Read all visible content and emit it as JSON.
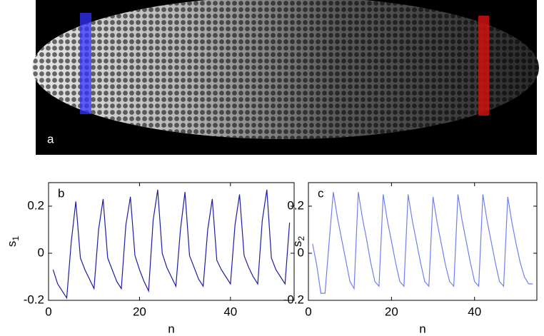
{
  "panel_a": {
    "label": "a"
  },
  "chart_data": [
    {
      "type": "line",
      "label": "b",
      "ylabel": "s",
      "ylabel_sub": "1",
      "xlabel": "n",
      "xlim": [
        0,
        54
      ],
      "xticks": [
        0,
        20,
        40
      ],
      "ylim": [
        -0.2,
        0.3
      ],
      "yticks": [
        -0.2,
        0,
        0.2
      ],
      "x": [
        1,
        2,
        3,
        4,
        5,
        6,
        7,
        8,
        9,
        10,
        11,
        12,
        13,
        14,
        15,
        16,
        17,
        18,
        19,
        20,
        21,
        22,
        23,
        24,
        25,
        26,
        27,
        28,
        29,
        30,
        31,
        32,
        33,
        34,
        35,
        36,
        37,
        38,
        39,
        40,
        41,
        42,
        43,
        44,
        45,
        46,
        47,
        48,
        49,
        50,
        51,
        52,
        53
      ],
      "series": [
        {
          "color": "#1c1ca6",
          "values": [
            -0.07,
            -0.13,
            -0.16,
            -0.19,
            0.05,
            0.22,
            -0.02,
            -0.07,
            -0.11,
            -0.15,
            0.1,
            0.23,
            -0.02,
            -0.07,
            -0.12,
            -0.15,
            0.12,
            0.24,
            -0.01,
            -0.07,
            -0.12,
            -0.16,
            0.14,
            0.27,
            0.0,
            -0.06,
            -0.1,
            -0.14,
            0.1,
            0.26,
            -0.01,
            -0.06,
            -0.11,
            -0.14,
            0.1,
            0.23,
            -0.03,
            -0.07,
            -0.1,
            -0.13,
            0.12,
            0.25,
            -0.01,
            -0.06,
            -0.1,
            -0.13,
            0.14,
            0.27,
            -0.02,
            -0.07,
            -0.1,
            -0.13,
            0.13
          ]
        }
      ]
    },
    {
      "type": "line",
      "label": "c",
      "ylabel": "s",
      "ylabel_sub": "2",
      "xlabel": "n",
      "xlim": [
        0,
        55
      ],
      "xticks": [
        0,
        20,
        40
      ],
      "ylim": [
        -0.2,
        0.3
      ],
      "yticks": [
        -0.2,
        0,
        0.2
      ],
      "x": [
        1,
        2,
        3,
        4,
        5,
        6,
        7,
        8,
        9,
        10,
        11,
        12,
        13,
        14,
        15,
        16,
        17,
        18,
        19,
        20,
        21,
        22,
        23,
        24,
        25,
        26,
        27,
        28,
        29,
        30,
        31,
        32,
        33,
        34,
        35,
        36,
        37,
        38,
        39,
        40,
        41,
        42,
        43,
        44,
        45,
        46,
        47,
        48,
        49,
        50,
        51,
        52,
        53,
        54
      ],
      "series": [
        {
          "color": "#7080ee",
          "values": [
            0.04,
            -0.05,
            -0.17,
            -0.17,
            0.05,
            0.26,
            0.15,
            0.06,
            -0.03,
            -0.12,
            -0.15,
            0.26,
            0.15,
            0.06,
            -0.04,
            -0.12,
            -0.14,
            0.25,
            0.14,
            0.05,
            -0.04,
            -0.12,
            -0.14,
            0.25,
            0.14,
            0.05,
            -0.04,
            -0.12,
            -0.14,
            0.24,
            0.13,
            0.04,
            -0.05,
            -0.12,
            -0.14,
            0.25,
            0.14,
            0.05,
            -0.04,
            -0.12,
            -0.14,
            0.25,
            0.14,
            0.05,
            -0.04,
            -0.12,
            -0.14,
            0.24,
            0.13,
            0.04,
            -0.04,
            -0.1,
            -0.13,
            -0.13
          ]
        }
      ]
    }
  ]
}
